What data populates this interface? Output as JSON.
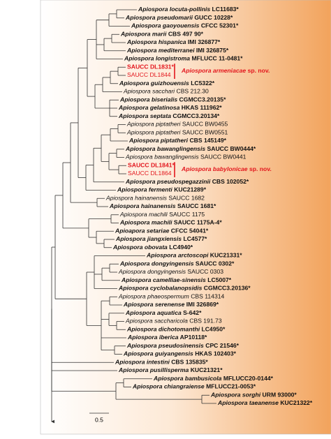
{
  "tree": {
    "taxa": [
      {
        "species": "Apiospora locuta-pollinis",
        "strain": "LC11683*",
        "bold": true
      },
      {
        "species": "Apiospora pseudomarii",
        "strain": "GUCC 10228*",
        "bold": true
      },
      {
        "species": "Apiospora gaoyouensis",
        "strain": "CFCC 52301*",
        "bold": true
      },
      {
        "species": "Apiospora marii",
        "strain": "CBS 497 90*",
        "bold": true
      },
      {
        "species": "Apiospora hispanica",
        "strain": "IMI 326877*",
        "bold": true
      },
      {
        "species": "Apiospora mediterranei",
        "strain": "IMI 326875*",
        "bold": true
      },
      {
        "species": "Apiospora longistroma",
        "strain": "MFLUCC 11-0481*",
        "bold": true
      },
      {
        "strain": "SAUCC DL1831*",
        "bold": true,
        "color": "#e3161d"
      },
      {
        "strain": "SAUCC DL1844",
        "bold": false,
        "color": "#e3161d"
      },
      {
        "species": "Apiospora guizhouensis",
        "strain": "LC5322*",
        "bold": true
      },
      {
        "species": "Apiospora sacchari",
        "strain": "CBS 212.30",
        "bold": false
      },
      {
        "species": "Apiospora biserialis",
        "strain": "CGMCC3.20135*",
        "bold": true
      },
      {
        "species": "Apiospora gelatinosa",
        "strain": "HKAS 111962*",
        "bold": true
      },
      {
        "species": "Apiospora septata",
        "strain": "CGMCC3.20134*",
        "bold": true
      },
      {
        "species": "Apiospora piptatheri",
        "strain": "SAUCC BW0455",
        "bold": false
      },
      {
        "species": "Apiospora piptatheri",
        "strain": "SAUCC BW0551",
        "bold": false
      },
      {
        "species": "Apiospora piptatheri",
        "strain": "CBS 145149*",
        "bold": true
      },
      {
        "species": "Apiospora bawanglingensis",
        "strain": "SAUCC BW0444*",
        "bold": true
      },
      {
        "species": "Apiospora bawanglingensis",
        "strain": "SAUCC BW0441",
        "bold": false
      },
      {
        "strain": "SAUCC DL1841*",
        "bold": true,
        "color": "#e3161d"
      },
      {
        "strain": "SAUCC DL1864",
        "bold": false,
        "color": "#e3161d"
      },
      {
        "species": "Apiospora pseudospegazzinii",
        "strain": "CBS 102052*",
        "bold": true
      },
      {
        "species": "Apiospora fermenti",
        "strain": "KUC21289*",
        "bold": true
      },
      {
        "species": "Apiospora hainanensis",
        "strain": "SAUCC 1682",
        "bold": false
      },
      {
        "species": "Apiospora hainanensis",
        "strain": "SAUCC 1681*",
        "bold": true
      },
      {
        "species": "Apiospora machili",
        "strain": "SAUCC 1175",
        "bold": false
      },
      {
        "species": "Apiospora machili",
        "strain": "SAUCC 1175A-4*",
        "bold": true
      },
      {
        "species": "Apioapora setariae",
        "strain": "CFCC 54041*",
        "bold": true
      },
      {
        "species": "Apiospora jiangxiensis",
        "strain": "LC4577*",
        "bold": true
      },
      {
        "species": "Apiospora obovata",
        "strain": "LC4940*",
        "bold": true
      },
      {
        "species": "Apiospora arctoscopi",
        "strain": "KUC21331*",
        "bold": true
      },
      {
        "species": "Apiospora dongyingensis",
        "strain": "SAUCC 0302*",
        "bold": true
      },
      {
        "species": "Apiospora dongyingensis",
        "strain": "SAUCC 0303",
        "bold": false
      },
      {
        "species": "Apiospora camelliae-sinensis",
        "strain": "LC5007*",
        "bold": true
      },
      {
        "species": "Apiospora cyclobalanopsidis",
        "strain": "CGMCC3.20136*",
        "bold": true
      },
      {
        "species": "Apiospora phaeospermum",
        "strain": "CBS 114314",
        "bold": false
      },
      {
        "species": "Apiospora serenense",
        "strain": "IMI 326869*",
        "bold": true
      },
      {
        "species": "Apiospora aquatica",
        "strain": "S-642*",
        "bold": true
      },
      {
        "species": "Apiospora saccharicola",
        "strain": "CBS 191.73",
        "bold": false
      },
      {
        "species": "Apiospora dichotomanthi",
        "strain": "LC4950*",
        "bold": true
      },
      {
        "species": "Apiospora iberica",
        "strain": "AP10118*",
        "bold": true
      },
      {
        "species": "Apiospora pseudosinensis",
        "strain": "CPC 21546*",
        "bold": true
      },
      {
        "species": "Apiospora guiyangensis",
        "strain": "HKAS 102403*",
        "bold": true
      },
      {
        "species": "Apiospora intestini",
        "strain": "CBS 135835*",
        "bold": true
      },
      {
        "species": "Apiospora pusillisperma",
        "strain": "KUC21321*",
        "bold": true
      },
      {
        "species": "Apiospora bambusicola",
        "strain": "MFLUCC20-0144*",
        "bold": true
      },
      {
        "species": "Apiospora chiangraiense",
        "strain": "MFLUCC21-0053*",
        "bold": true
      },
      {
        "species": "Apiospora sorghi",
        "strain": "URM 93000*",
        "bold": true
      },
      {
        "species": "Apiospora taeanense",
        "strain": "KUC21322*",
        "bold": true
      }
    ],
    "new_species": [
      {
        "species": "Apiospora armeniacae",
        "status": "sp. nov.",
        "color": "#e3161d"
      },
      {
        "species": "Apiospora  babylonicae",
        "status": "sp. nov.",
        "color": "#e3161d"
      }
    ],
    "scale_bar": 0.5
  }
}
